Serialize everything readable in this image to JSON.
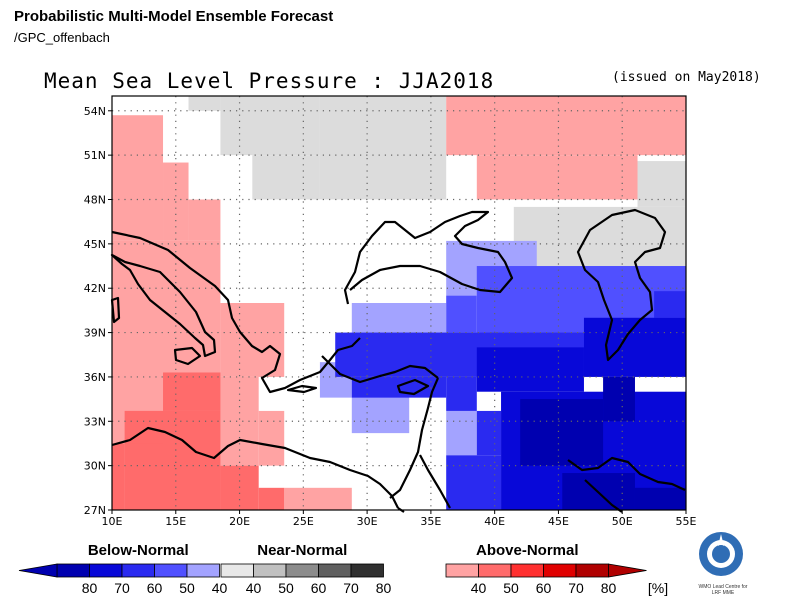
{
  "header": {
    "product_title": "Probabilistic Multi-Model Ensemble Forecast",
    "source": "/GPC_offenbach",
    "map_title": "Mean Sea Level Pressure : JJA2018",
    "issued": "(issued on May2018)"
  },
  "map": {
    "lon_range": [
      10,
      55
    ],
    "lat_range": [
      27,
      55
    ],
    "lon_ticks": [
      "10E",
      "15E",
      "20E",
      "25E",
      "30E",
      "35E",
      "40E",
      "45E",
      "50E",
      "55E"
    ],
    "lat_ticks": [
      "27N",
      "30N",
      "33N",
      "36N",
      "39N",
      "42N",
      "45N",
      "48N",
      "51N",
      "54N"
    ],
    "grid": "dotted",
    "colors": {
      "below_40": "#a3a3ff",
      "below_50": "#5050ff",
      "below_60": "#2a2af0",
      "below_70": "#0808d8",
      "below_80": "#0000b0",
      "near_40": "#dcdcdc",
      "above_40": "#ffa3a3",
      "above_50": "#ff6b6b",
      "above_60": "#ff3030",
      "above_70": "#e00000",
      "above_80": "#b00000"
    }
  },
  "legend": {
    "below": {
      "title": "Below-Normal",
      "ticks": [
        "80",
        "70",
        "60",
        "50",
        "40"
      ],
      "colors": [
        "#0000b0",
        "#0808d8",
        "#2a2af0",
        "#5050ff",
        "#a3a3ff"
      ]
    },
    "near": {
      "title": "Near-Normal",
      "ticks": [
        "40",
        "50",
        "60",
        "70",
        "80"
      ],
      "colors": [
        "#e8e8e8",
        "#c0c0c0",
        "#8c8c8c",
        "#606060",
        "#303030"
      ]
    },
    "above": {
      "title": "Above-Normal",
      "ticks": [
        "40",
        "50",
        "60",
        "70",
        "80"
      ],
      "colors": [
        "#ffa3a3",
        "#ff6b6b",
        "#ff3030",
        "#e00000",
        "#b00000"
      ]
    },
    "unit": "[%]"
  },
  "logo": {
    "text_line1": "WMO Lead Centre for",
    "text_line2": "LRF MME"
  }
}
